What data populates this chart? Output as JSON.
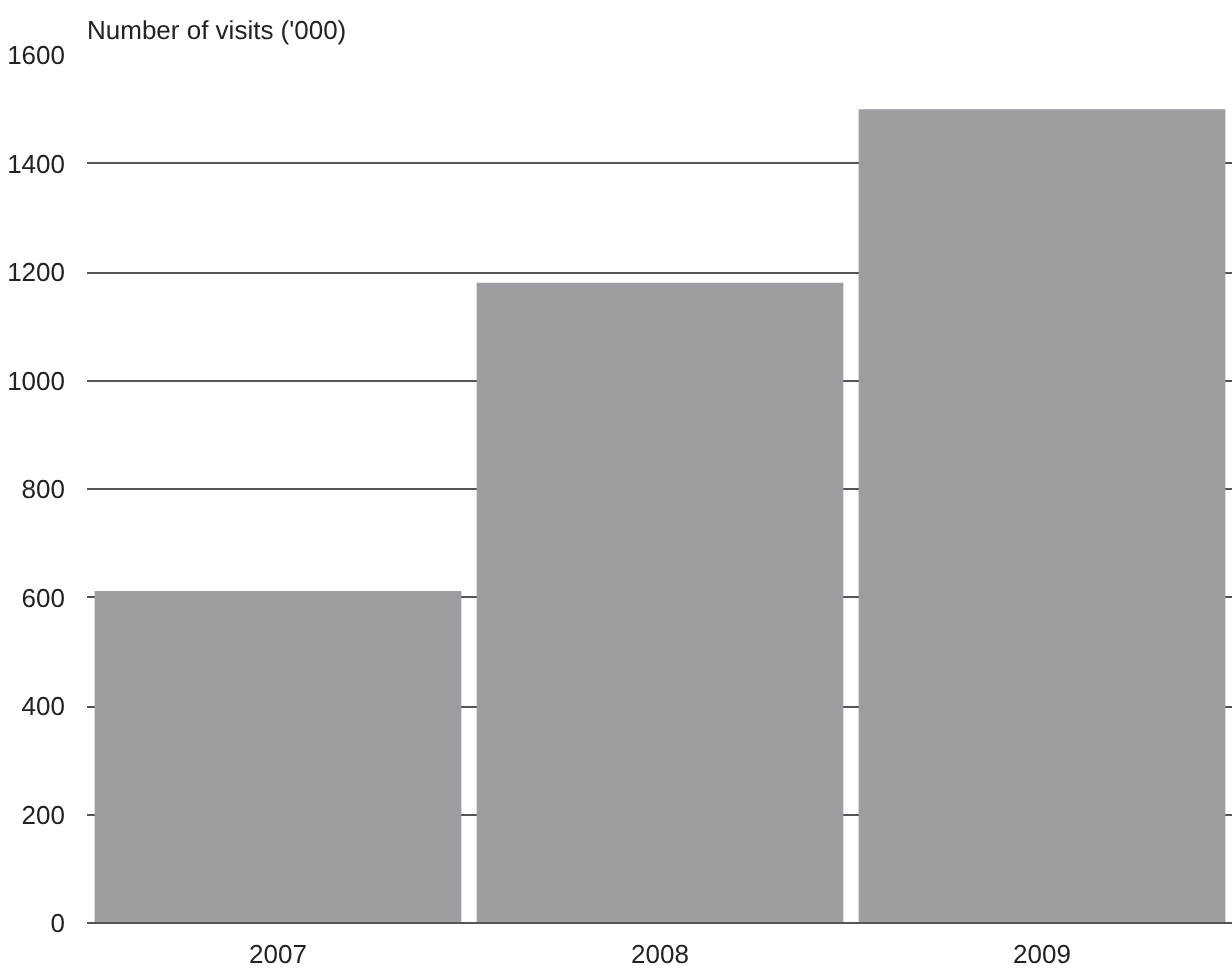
{
  "chart_data": {
    "type": "bar",
    "ylabel": "Number of visits ('000)",
    "categories": [
      "2007",
      "2008",
      "2009"
    ],
    "values": [
      612,
      1180,
      1500
    ],
    "color": "#9d9ea2",
    "ylim": [
      0,
      1600
    ],
    "yticks": [
      0,
      200,
      400,
      600,
      800,
      1000,
      1200,
      1400,
      1600
    ],
    "grid": "y"
  }
}
